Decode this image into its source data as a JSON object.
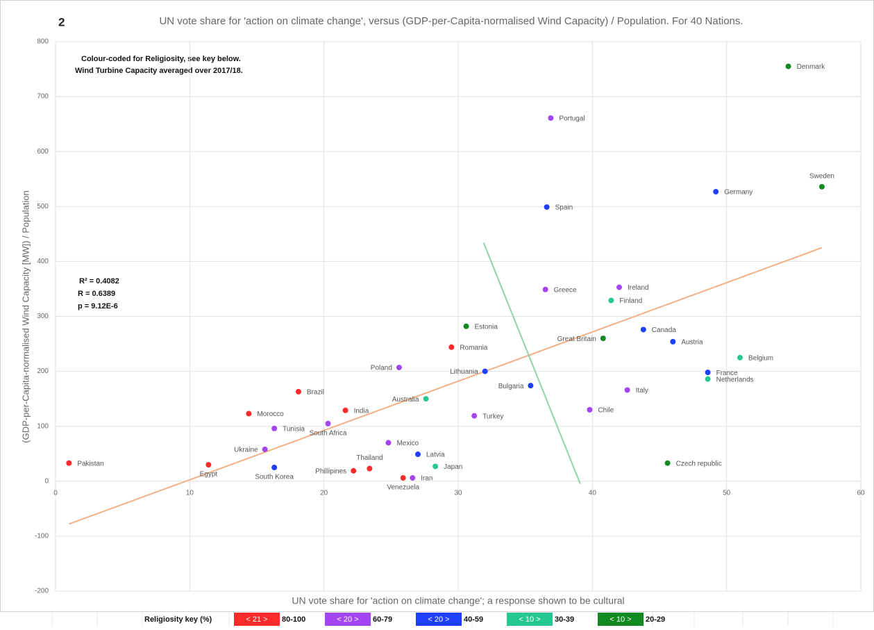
{
  "chart_data": {
    "type": "scatter",
    "number": "2",
    "title": "UN vote share for 'action on climate change', versus (GDP-per-Capita-normalised Wind Capacity) / Population. For 40 Nations.",
    "x_label": "UN vote share for 'action on climate change'; a response shown to be cultural",
    "y_label": "(GDP-per-Capita-normalised Wind Capacity [MW]) / Population",
    "notes": [
      "Colour-coded for Religiosity, see key below.",
      "Wind Turbine Capacity averaged over 2017/18."
    ],
    "stats": [
      "R² = 0.4082",
      "R = 0.6389",
      "p = 9.12E-6"
    ],
    "legend_title": "Religiosity key (%)",
    "xlim": [
      0,
      60
    ],
    "xticks": [
      0,
      10,
      20,
      30,
      40,
      50,
      60
    ],
    "ylim": [
      -200,
      800
    ],
    "yticks": [
      -200,
      -100,
      0,
      100,
      200,
      300,
      400,
      500,
      600,
      700,
      800
    ],
    "grid": true,
    "series": [
      {
        "name": "80-100",
        "key": "< 21 >",
        "color": "#ff2a2a",
        "labels": [
          "Pakistan",
          "Egypt",
          "Morocco",
          "Brazil",
          "India",
          "Romania",
          "Thailand",
          "Phillipines",
          "Venezuela"
        ],
        "x": [
          1.0,
          11.4,
          14.4,
          18.1,
          21.6,
          29.5,
          23.4,
          22.2,
          25.9
        ],
        "values": [
          33,
          30,
          123,
          163,
          129,
          244,
          23,
          19,
          6
        ]
      },
      {
        "name": "60-79",
        "key": "< 20 >",
        "color": "#a445f2",
        "labels": [
          "Iran",
          "Tunisia",
          "Ukraine",
          "South Africa",
          "Mexico",
          "Poland",
          "Turkey",
          "Portugal",
          "Greece",
          "Ireland",
          "Italy",
          "Chile"
        ],
        "x": [
          26.6,
          16.3,
          15.6,
          20.3,
          24.8,
          25.6,
          31.2,
          36.9,
          36.5,
          42.0,
          42.6,
          39.8
        ],
        "values": [
          6,
          96,
          58,
          105,
          70,
          207,
          119,
          661,
          349,
          353,
          166,
          130
        ]
      },
      {
        "name": "40-59",
        "key": "< 20 >",
        "color": "#1f3fff",
        "labels": [
          "South Korea",
          "Latvia",
          "Lithuania",
          "Bulgaria",
          "Spain",
          "Germany",
          "Canada",
          "Austria",
          "France"
        ],
        "x": [
          16.3,
          27.0,
          32.0,
          35.4,
          36.6,
          49.2,
          43.8,
          46.0,
          48.6
        ],
        "values": [
          25,
          49,
          200,
          174,
          499,
          527,
          276,
          254,
          198
        ]
      },
      {
        "name": "30-39",
        "key": "< 10 >",
        "color": "#25c98f",
        "labels": [
          "Australia",
          "Japan",
          "Finland",
          "Belgium",
          "Netherlands"
        ],
        "x": [
          27.6,
          28.3,
          41.4,
          51.0,
          48.6
        ],
        "values": [
          150,
          27,
          329,
          225,
          186
        ]
      },
      {
        "name": "20-29",
        "key": "< 10 >",
        "color": "#128a22",
        "labels": [
          "Estonia",
          "Great Britain",
          "Denmark",
          "Sweden",
          "Czech republic"
        ],
        "x": [
          30.6,
          40.8,
          54.6,
          57.1,
          45.6
        ],
        "values": [
          282,
          260,
          755,
          536,
          33
        ]
      }
    ],
    "trendline": {
      "color": "#f4b183",
      "x": [
        1.0,
        57.1
      ],
      "values": [
        -78,
        425
      ]
    },
    "divider": {
      "color": "#8fd4a4",
      "x": [
        31.9,
        39.1
      ],
      "values": [
        434,
        -5
      ]
    }
  }
}
